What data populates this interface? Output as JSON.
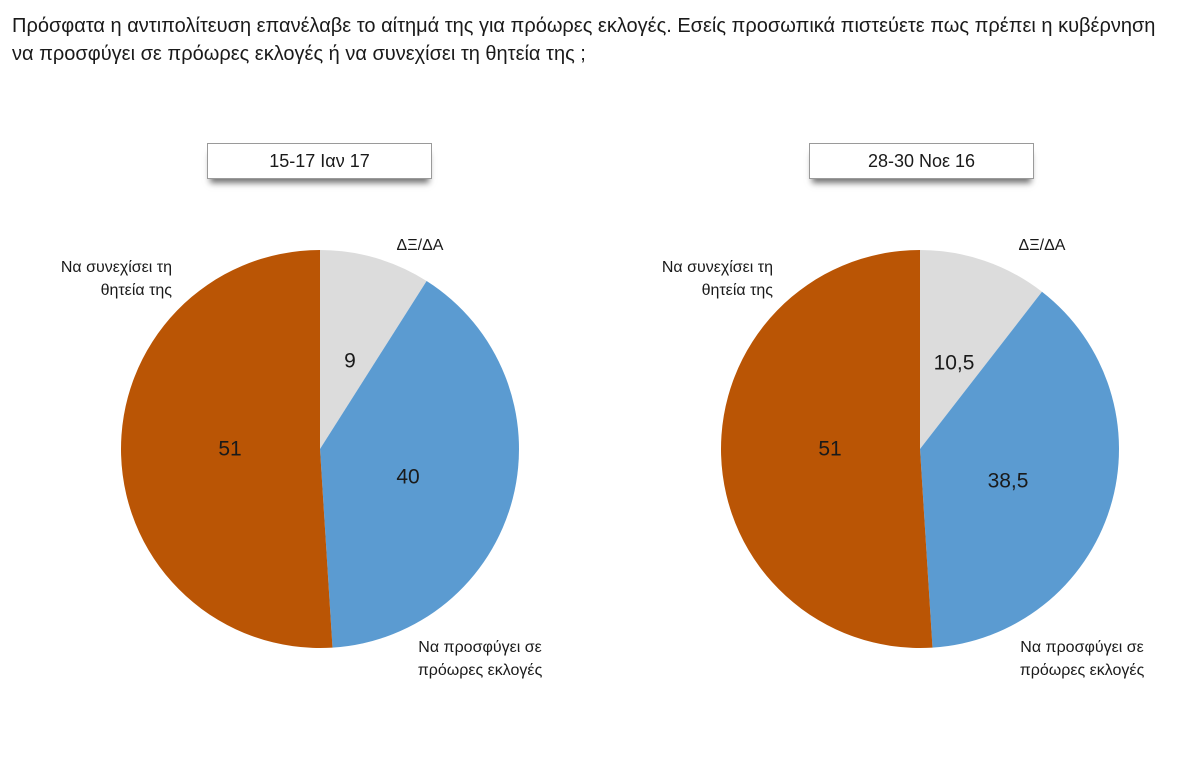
{
  "question": "Πρόσφατα η αντιπολίτευση επανέλαβε το αίτημά της για πρόωρες εκλογές. Εσείς προσωπικά πιστεύετε πως πρέπει η κυβέρνηση να προσφύγει σε πρόωρες εκλογές ή να συνεχίσει τη θητεία της ;",
  "chart_data": [
    {
      "type": "pie",
      "title": "15-17 Ιαν 17",
      "slices": [
        {
          "label": [
            "ΔΞ/ΔΑ"
          ],
          "value": 9,
          "value_text": "9",
          "color": "#dcdcdc"
        },
        {
          "label": [
            "Να προσφύγει  σε",
            "πρόωρες εκλογές"
          ],
          "value": 40,
          "value_text": "40",
          "color": "#5b9bd1"
        },
        {
          "label": [
            "Να συνεχίσει τη",
            "θητεία της"
          ],
          "value": 51,
          "value_text": "51",
          "color": "#ba5505"
        }
      ]
    },
    {
      "type": "pie",
      "title": "28-30 Νοε 16",
      "slices": [
        {
          "label": [
            "ΔΞ/ΔΑ"
          ],
          "value": 10.5,
          "value_text": "10,5",
          "color": "#dcdcdc"
        },
        {
          "label": [
            "Να προσφύγει  σε",
            "πρόωρες εκλογές"
          ],
          "value": 38.5,
          "value_text": "38,5",
          "color": "#5b9bd1"
        },
        {
          "label": [
            "Να συνεχίσει τη",
            "θητεία της"
          ],
          "value": 51,
          "value_text": "51",
          "color": "#ba5505"
        }
      ]
    }
  ]
}
